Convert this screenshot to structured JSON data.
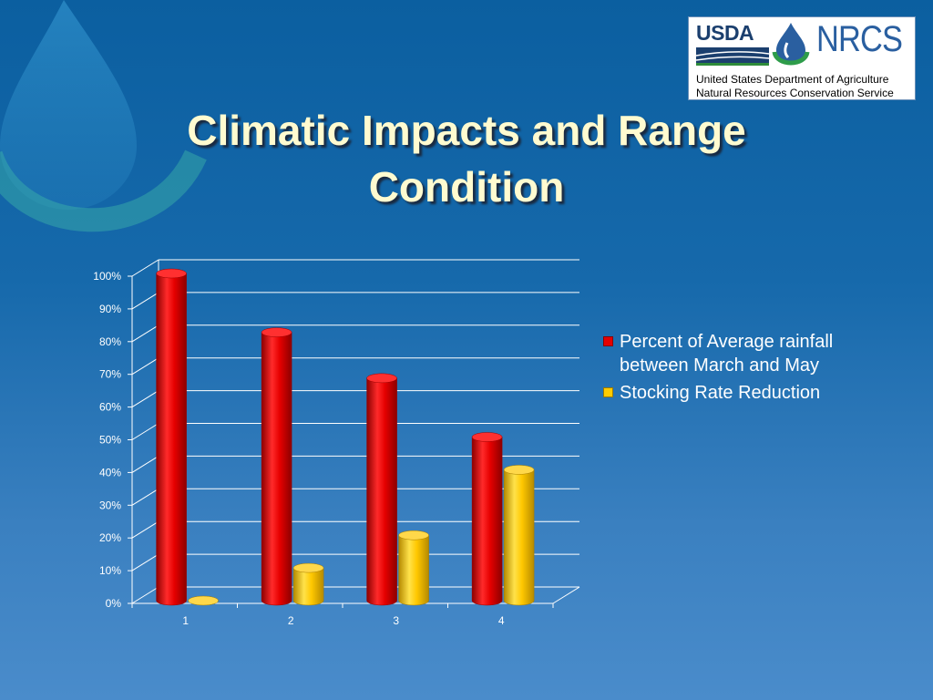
{
  "slide": {
    "title_line1": "Climatic Impacts and Range",
    "title_line2": "Condition"
  },
  "logo": {
    "usda": "USDA",
    "nrcs": "NRCS",
    "line1": "United States Department of Agriculture",
    "line2": "Natural Resources Conservation Service"
  },
  "colors": {
    "rainfall": "#e60000",
    "stocking": "#ffcc00",
    "title": "#fffbd0",
    "background": "#1669ab"
  },
  "chart_data": {
    "type": "bar",
    "style": "3d-cylinder",
    "categories": [
      "1",
      "2",
      "3",
      "4"
    ],
    "series": [
      {
        "name": "Percent of Average rainfall between March and May",
        "values": [
          100,
          82,
          68,
          50
        ]
      },
      {
        "name": "Stocking Rate Reduction",
        "values": [
          0,
          10,
          20,
          40
        ]
      }
    ],
    "yticks": [
      "0%",
      "10%",
      "20%",
      "30%",
      "40%",
      "50%",
      "60%",
      "70%",
      "80%",
      "90%",
      "100%"
    ],
    "ylim": [
      0,
      100
    ],
    "grid": true,
    "legend_position": "right"
  }
}
